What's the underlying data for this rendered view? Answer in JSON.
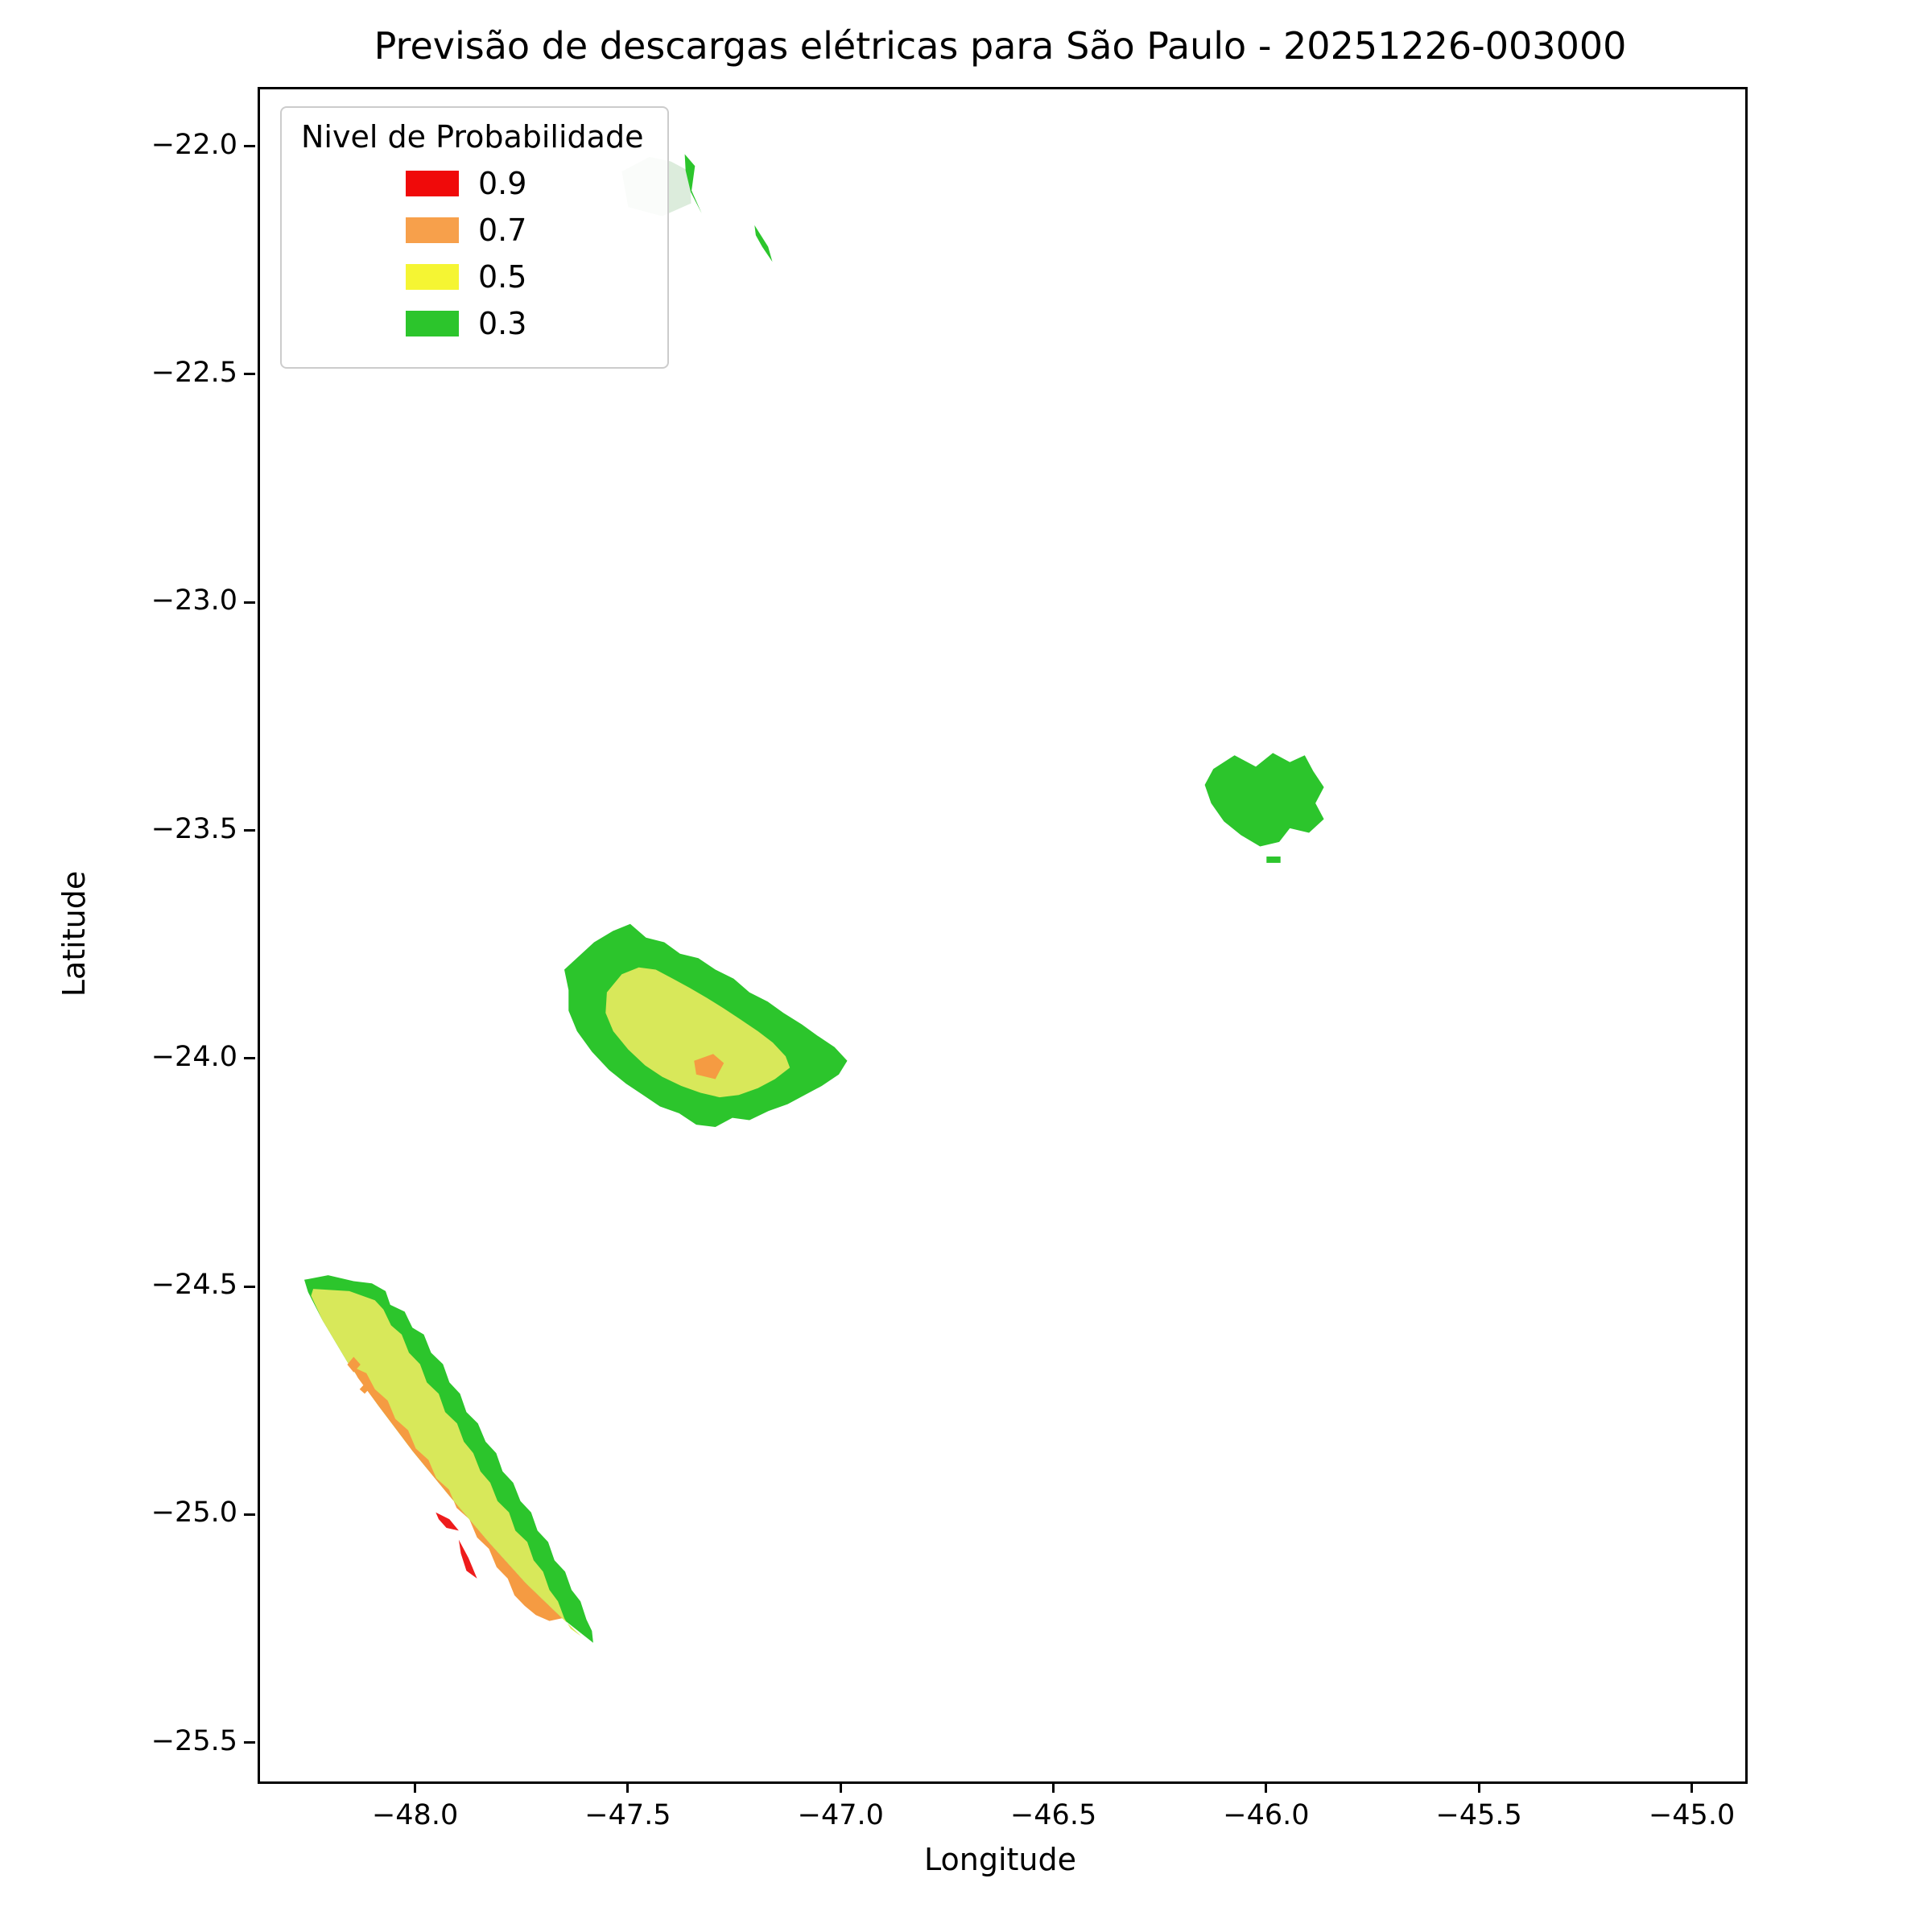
{
  "title": "Previsão de descargas elétricas para São Paulo - 20251226-003000",
  "axes": {
    "xlabel": "Longitude",
    "ylabel": "Latitude",
    "x_ticks": [
      {
        "value": -48.0,
        "label": "−48.0"
      },
      {
        "value": -47.5,
        "label": "−47.5"
      },
      {
        "value": -47.0,
        "label": "−47.0"
      },
      {
        "value": -46.5,
        "label": "−46.5"
      },
      {
        "value": -46.0,
        "label": "−46.0"
      },
      {
        "value": -45.5,
        "label": "−45.5"
      },
      {
        "value": -45.0,
        "label": "−45.0"
      }
    ],
    "y_ticks": [
      {
        "value": -22.0,
        "label": "−22.0"
      },
      {
        "value": -22.5,
        "label": "−22.5"
      },
      {
        "value": -23.0,
        "label": "−23.0"
      },
      {
        "value": -23.5,
        "label": "−23.5"
      },
      {
        "value": -24.0,
        "label": "−24.0"
      },
      {
        "value": -24.5,
        "label": "−24.5"
      },
      {
        "value": -25.0,
        "label": "−25.0"
      },
      {
        "value": -25.5,
        "label": "−25.5"
      }
    ]
  },
  "legend": {
    "title": "Nivel de Probabilidade",
    "items": [
      {
        "label": "0.9",
        "color": "#f00a0a"
      },
      {
        "label": "0.7",
        "color": "#f7a04b"
      },
      {
        "label": "0.5",
        "color": "#f5f533"
      },
      {
        "label": "0.3",
        "color": "#2cc52c"
      }
    ]
  },
  "chart_data": {
    "type": "contour-map",
    "title": "Previsão de descargas elétricas para São Paulo - 20251226-003000",
    "xlabel": "Longitude",
    "ylabel": "Latitude",
    "xlim": [
      -48.37,
      -44.88
    ],
    "ylim": [
      -25.58,
      -21.87
    ],
    "grid": false,
    "legend_position": "upper left",
    "levels": [
      {
        "value": 0.9,
        "color": "#ee1c1c"
      },
      {
        "value": 0.7,
        "color": "#f59b42"
      },
      {
        "value": 0.5,
        "color": "#d8e85a"
      },
      {
        "value": 0.3,
        "color": "#2cc52c"
      }
    ],
    "regions": [
      {
        "name": "faint-green-patch",
        "level": 0.3,
        "color": "#dcecdc",
        "opacity": 1,
        "points": [
          [
            -47.52,
            -22.05
          ],
          [
            -47.455,
            -22.018
          ],
          [
            -47.405,
            -22.028
          ],
          [
            -47.36,
            -22.05
          ],
          [
            -47.357,
            -22.12
          ],
          [
            -47.425,
            -22.148
          ],
          [
            -47.505,
            -22.128
          ]
        ]
      },
      {
        "name": "north-green-sliver",
        "level": 0.3,
        "color": "#2cc52c",
        "opacity": 1,
        "points": [
          [
            -47.372,
            -22.012
          ],
          [
            -47.348,
            -22.038
          ],
          [
            -47.356,
            -22.092
          ],
          [
            -47.332,
            -22.142
          ],
          [
            -47.358,
            -22.095
          ],
          [
            -47.37,
            -22.048
          ]
        ]
      },
      {
        "name": "north-green-arrow",
        "level": 0.3,
        "color": "#2cc52c",
        "opacity": 1,
        "points": [
          [
            -47.208,
            -22.168
          ],
          [
            -47.176,
            -22.215
          ],
          [
            -47.166,
            -22.248
          ],
          [
            -47.19,
            -22.215
          ],
          [
            -47.205,
            -22.19
          ]
        ]
      },
      {
        "name": "east-green-blob",
        "level": 0.3,
        "color": "#2cc52c",
        "opacity": 1,
        "points": [
          [
            -46.13,
            -23.36
          ],
          [
            -46.08,
            -23.33
          ],
          [
            -46.03,
            -23.355
          ],
          [
            -45.99,
            -23.325
          ],
          [
            -45.95,
            -23.345
          ],
          [
            -45.915,
            -23.33
          ],
          [
            -45.895,
            -23.365
          ],
          [
            -45.87,
            -23.4
          ],
          [
            -45.89,
            -23.435
          ],
          [
            -45.87,
            -23.47
          ],
          [
            -45.905,
            -23.5
          ],
          [
            -45.95,
            -23.49
          ],
          [
            -45.975,
            -23.52
          ],
          [
            -46.02,
            -23.53
          ],
          [
            -46.065,
            -23.505
          ],
          [
            -46.105,
            -23.475
          ],
          [
            -46.135,
            -23.435
          ],
          [
            -46.15,
            -23.395
          ]
        ]
      },
      {
        "name": "east-green-dash",
        "level": 0.3,
        "color": "#2cc52c",
        "opacity": 1,
        "points": [
          [
            -46.005,
            -23.552
          ],
          [
            -45.972,
            -23.552
          ],
          [
            -45.972,
            -23.566
          ],
          [
            -46.005,
            -23.566
          ]
        ]
      },
      {
        "name": "center-outer-green",
        "level": 0.3,
        "color": "#2cc52c",
        "opacity": 1,
        "points": [
          [
            -47.645,
            -23.845
          ],
          [
            -47.655,
            -23.8
          ],
          [
            -47.62,
            -23.77
          ],
          [
            -47.585,
            -23.74
          ],
          [
            -47.54,
            -23.715
          ],
          [
            -47.5,
            -23.7
          ],
          [
            -47.463,
            -23.73
          ],
          [
            -47.42,
            -23.74
          ],
          [
            -47.383,
            -23.765
          ],
          [
            -47.34,
            -23.775
          ],
          [
            -47.3,
            -23.8
          ],
          [
            -47.257,
            -23.82
          ],
          [
            -47.22,
            -23.85
          ],
          [
            -47.177,
            -23.87
          ],
          [
            -47.14,
            -23.895
          ],
          [
            -47.097,
            -23.92
          ],
          [
            -47.06,
            -23.945
          ],
          [
            -47.02,
            -23.97
          ],
          [
            -46.99,
            -24.0
          ],
          [
            -47.01,
            -24.03
          ],
          [
            -47.05,
            -24.055
          ],
          [
            -47.09,
            -24.075
          ],
          [
            -47.13,
            -24.095
          ],
          [
            -47.175,
            -24.11
          ],
          [
            -47.22,
            -24.13
          ],
          [
            -47.26,
            -24.125
          ],
          [
            -47.3,
            -24.145
          ],
          [
            -47.345,
            -24.14
          ],
          [
            -47.385,
            -24.115
          ],
          [
            -47.43,
            -24.1
          ],
          [
            -47.47,
            -24.075
          ],
          [
            -47.51,
            -24.05
          ],
          [
            -47.55,
            -24.02
          ],
          [
            -47.59,
            -23.98
          ],
          [
            -47.625,
            -23.935
          ],
          [
            -47.645,
            -23.89
          ]
        ]
      },
      {
        "name": "center-inner-yellow",
        "level": 0.5,
        "color": "#d8e85a",
        "opacity": 1,
        "points": [
          [
            -47.555,
            -23.85
          ],
          [
            -47.52,
            -23.81
          ],
          [
            -47.48,
            -23.795
          ],
          [
            -47.44,
            -23.8
          ],
          [
            -47.4,
            -23.82
          ],
          [
            -47.36,
            -23.84
          ],
          [
            -47.32,
            -23.862
          ],
          [
            -47.28,
            -23.885
          ],
          [
            -47.24,
            -23.91
          ],
          [
            -47.2,
            -23.935
          ],
          [
            -47.165,
            -23.96
          ],
          [
            -47.135,
            -23.99
          ],
          [
            -47.125,
            -24.015
          ],
          [
            -47.16,
            -24.04
          ],
          [
            -47.2,
            -24.06
          ],
          [
            -47.245,
            -24.075
          ],
          [
            -47.29,
            -24.08
          ],
          [
            -47.335,
            -24.07
          ],
          [
            -47.38,
            -24.055
          ],
          [
            -47.425,
            -24.035
          ],
          [
            -47.465,
            -24.01
          ],
          [
            -47.505,
            -23.975
          ],
          [
            -47.54,
            -23.935
          ],
          [
            -47.558,
            -23.895
          ]
        ]
      },
      {
        "name": "center-orange-spot",
        "level": 0.7,
        "color": "#f59b42",
        "opacity": 1,
        "points": [
          [
            -47.35,
            -24.0
          ],
          [
            -47.305,
            -23.985
          ],
          [
            -47.28,
            -24.005
          ],
          [
            -47.3,
            -24.04
          ],
          [
            -47.345,
            -24.03
          ]
        ]
      },
      {
        "name": "southwest-band-green",
        "level": 0.3,
        "color": "#2cc52c",
        "opacity": 1,
        "points": [
          [
            -48.266,
            -24.48
          ],
          [
            -48.21,
            -24.47
          ],
          [
            -48.15,
            -24.483
          ],
          [
            -48.107,
            -24.488
          ],
          [
            -48.075,
            -24.505
          ],
          [
            -48.064,
            -24.535
          ],
          [
            -48.03,
            -24.55
          ],
          [
            -48.012,
            -24.585
          ],
          [
            -47.985,
            -24.6
          ],
          [
            -47.968,
            -24.64
          ],
          [
            -47.94,
            -24.665
          ],
          [
            -47.925,
            -24.705
          ],
          [
            -47.9,
            -24.73
          ],
          [
            -47.885,
            -24.77
          ],
          [
            -47.858,
            -24.795
          ],
          [
            -47.84,
            -24.835
          ],
          [
            -47.815,
            -24.86
          ],
          [
            -47.8,
            -24.9
          ],
          [
            -47.775,
            -24.925
          ],
          [
            -47.758,
            -24.965
          ],
          [
            -47.733,
            -24.99
          ],
          [
            -47.718,
            -25.03
          ],
          [
            -47.693,
            -25.055
          ],
          [
            -47.678,
            -25.095
          ],
          [
            -47.653,
            -25.12
          ],
          [
            -47.638,
            -25.16
          ],
          [
            -47.617,
            -25.185
          ],
          [
            -47.603,
            -25.225
          ],
          [
            -47.59,
            -25.25
          ],
          [
            -47.587,
            -25.276
          ],
          [
            -47.659,
            -25.223
          ],
          [
            -47.746,
            -25.145
          ],
          [
            -47.832,
            -25.056
          ],
          [
            -47.925,
            -24.954
          ],
          [
            -48.012,
            -24.855
          ],
          [
            -48.092,
            -24.756
          ],
          [
            -48.165,
            -24.66
          ],
          [
            -48.223,
            -24.569
          ],
          [
            -48.257,
            -24.507
          ]
        ]
      },
      {
        "name": "southwest-band-yellow",
        "level": 0.5,
        "color": "#d8e85a",
        "opacity": 1,
        "points": [
          [
            -48.245,
            -24.5
          ],
          [
            -48.16,
            -24.505
          ],
          [
            -48.1,
            -24.525
          ],
          [
            -48.08,
            -24.545
          ],
          [
            -48.062,
            -24.58
          ],
          [
            -48.037,
            -24.6
          ],
          [
            -48.02,
            -24.64
          ],
          [
            -47.994,
            -24.665
          ],
          [
            -47.978,
            -24.705
          ],
          [
            -47.95,
            -24.73
          ],
          [
            -47.935,
            -24.77
          ],
          [
            -47.907,
            -24.795
          ],
          [
            -47.891,
            -24.835
          ],
          [
            -47.869,
            -24.86
          ],
          [
            -47.852,
            -24.9
          ],
          [
            -47.829,
            -24.925
          ],
          [
            -47.812,
            -24.965
          ],
          [
            -47.785,
            -24.99
          ],
          [
            -47.77,
            -25.03
          ],
          [
            -47.742,
            -25.055
          ],
          [
            -47.727,
            -25.095
          ],
          [
            -47.705,
            -25.12
          ],
          [
            -47.69,
            -25.16
          ],
          [
            -47.67,
            -25.185
          ],
          [
            -47.655,
            -25.222
          ],
          [
            -47.64,
            -25.245
          ],
          [
            -47.615,
            -25.262
          ],
          [
            -47.659,
            -25.223
          ],
          [
            -47.746,
            -25.145
          ],
          [
            -47.832,
            -25.056
          ],
          [
            -47.925,
            -24.954
          ],
          [
            -48.012,
            -24.855
          ],
          [
            -48.092,
            -24.756
          ],
          [
            -48.165,
            -24.66
          ],
          [
            -48.223,
            -24.569
          ],
          [
            -48.25,
            -24.515
          ]
        ]
      },
      {
        "name": "southwest-band-orange",
        "level": 0.7,
        "color": "#f59b42",
        "opacity": 1,
        "points": [
          [
            -48.155,
            -24.67
          ],
          [
            -48.12,
            -24.685
          ],
          [
            -48.1,
            -24.72
          ],
          [
            -48.07,
            -24.745
          ],
          [
            -48.052,
            -24.785
          ],
          [
            -48.022,
            -24.81
          ],
          [
            -48.004,
            -24.85
          ],
          [
            -47.974,
            -24.875
          ],
          [
            -47.956,
            -24.915
          ],
          [
            -47.926,
            -24.94
          ],
          [
            -47.908,
            -24.98
          ],
          [
            -47.878,
            -25.005
          ],
          [
            -47.86,
            -25.045
          ],
          [
            -47.832,
            -25.07
          ],
          [
            -47.814,
            -25.11
          ],
          [
            -47.788,
            -25.135
          ],
          [
            -47.772,
            -25.172
          ],
          [
            -47.748,
            -25.195
          ],
          [
            -47.722,
            -25.215
          ],
          [
            -47.69,
            -25.228
          ],
          [
            -47.66,
            -25.222
          ],
          [
            -47.746,
            -25.145
          ],
          [
            -47.832,
            -25.056
          ],
          [
            -47.925,
            -24.954
          ],
          [
            -48.012,
            -24.855
          ],
          [
            -48.092,
            -24.756
          ],
          [
            -48.14,
            -24.695
          ]
        ]
      },
      {
        "name": "southwest-red-spot-1",
        "level": 0.9,
        "color": "#ee1c1c",
        "opacity": 1,
        "points": [
          [
            -47.957,
            -24.99
          ],
          [
            -47.925,
            -25.005
          ],
          [
            -47.903,
            -25.03
          ],
          [
            -47.932,
            -25.024
          ],
          [
            -47.95,
            -25.005
          ]
        ]
      },
      {
        "name": "southwest-red-spot-2",
        "level": 0.9,
        "color": "#ee1c1c",
        "opacity": 1,
        "points": [
          [
            -47.903,
            -25.05
          ],
          [
            -47.88,
            -25.09
          ],
          [
            -47.86,
            -25.135
          ],
          [
            -47.885,
            -25.118
          ],
          [
            -47.898,
            -25.08
          ]
        ]
      },
      {
        "name": "southwest-orange-diamond",
        "level": 0.7,
        "color": "#f59b42",
        "opacity": 1,
        "points": [
          [
            -48.15,
            -24.649
          ],
          [
            -48.134,
            -24.666
          ],
          [
            -48.15,
            -24.683
          ],
          [
            -48.165,
            -24.666
          ]
        ]
      },
      {
        "name": "southwest-orange-dot",
        "level": 0.7,
        "color": "#f59b42",
        "opacity": 1,
        "points": [
          [
            -48.126,
            -24.71
          ],
          [
            -48.114,
            -24.72
          ],
          [
            -48.124,
            -24.73
          ],
          [
            -48.136,
            -24.72
          ]
        ]
      }
    ]
  }
}
